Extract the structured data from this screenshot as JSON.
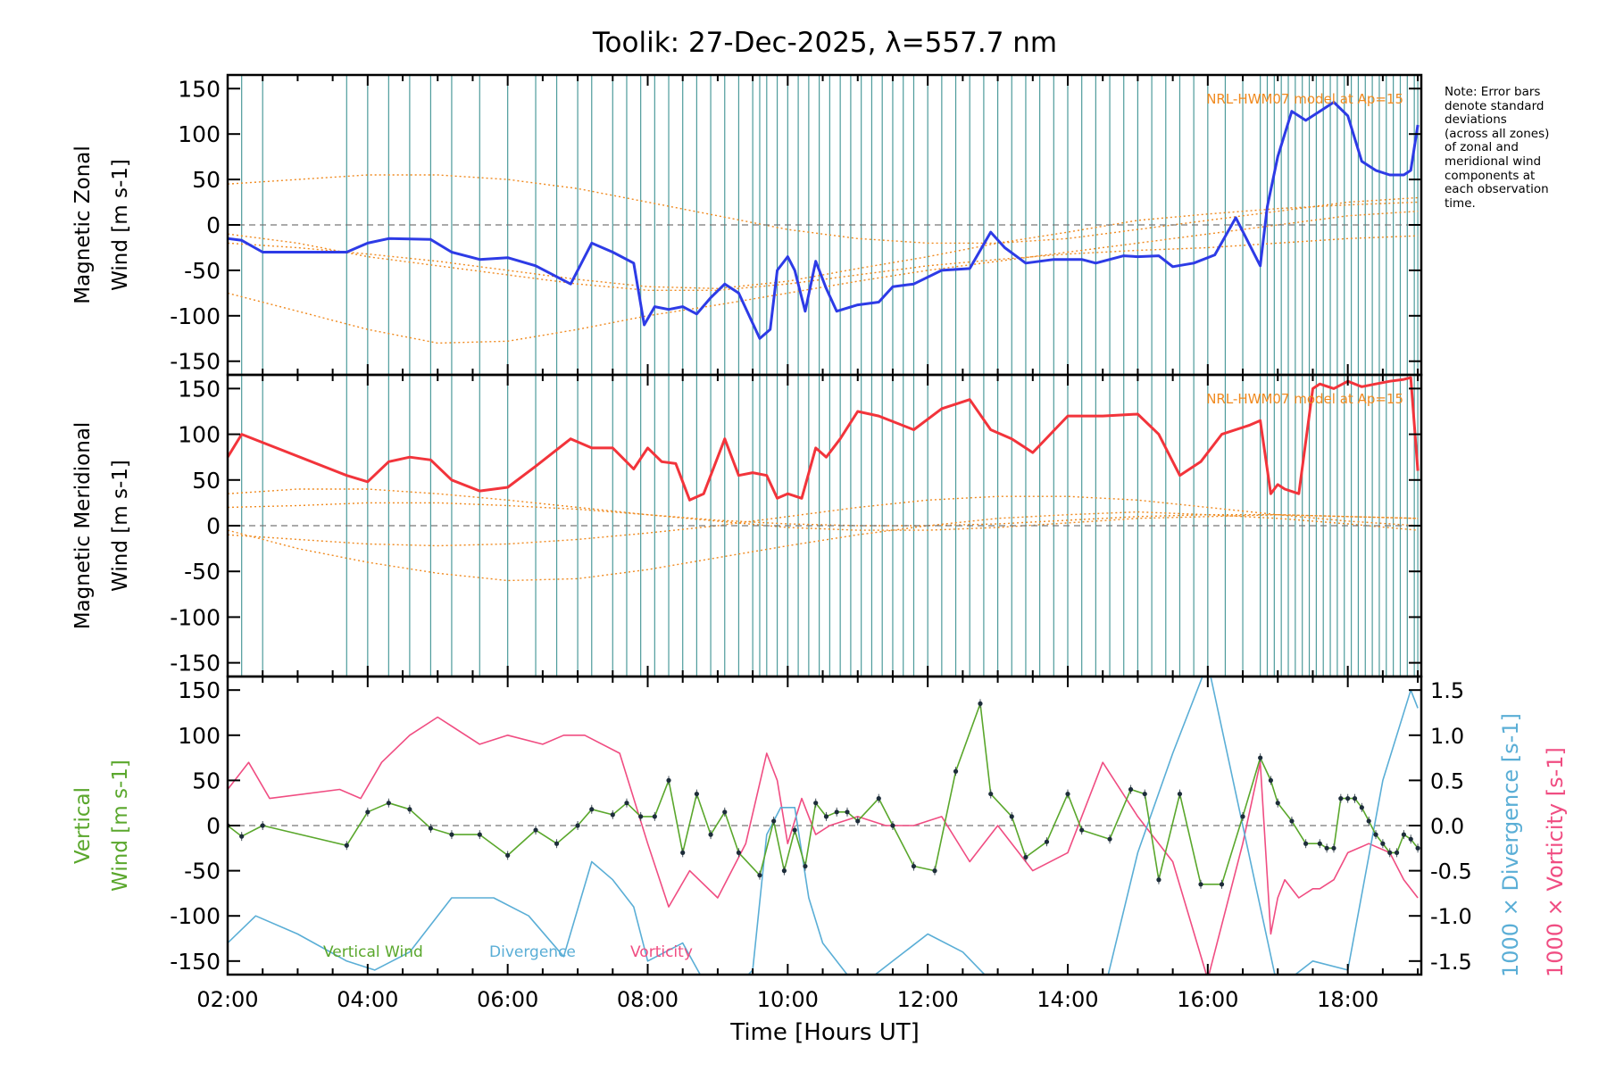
{
  "title": "Toolik: 27-Dec-2025, λ=557.7 nm",
  "note_lines": [
    "Note: Error bars",
    "denote standard",
    "deviations",
    "(across all zones)",
    "of zonal and",
    "meridional wind",
    "components at",
    "each observation",
    "time."
  ],
  "colors": {
    "zonal": "#2d3be6",
    "meridional": "#f2343b",
    "vertical": "#5aa72c",
    "divergence": "#5aaed6",
    "vorticity": "#f04d82",
    "model": "#f08a1f",
    "grid_lines": "#2f8a8a"
  },
  "chart_data": [
    {
      "type": "line",
      "panel": "zonal",
      "ylabel_line1": "Magnetic Zonal",
      "ylabel_line2": "Wind [m s-1]",
      "ylim": [
        -165,
        165
      ],
      "yticks": [
        -150,
        -100,
        -50,
        0,
        50,
        100,
        150
      ],
      "model_label": "NRL-HWM07 model at Ap=15",
      "series": [
        {
          "name": "Zonal Wind",
          "x": [
            2.0,
            2.2,
            2.5,
            3.7,
            4.0,
            4.3,
            4.9,
            5.2,
            5.6,
            6.0,
            6.4,
            6.9,
            7.2,
            7.5,
            7.8,
            7.95,
            8.1,
            8.3,
            8.5,
            8.7,
            8.9,
            9.1,
            9.3,
            9.6,
            9.75,
            9.85,
            10.0,
            10.1,
            10.25,
            10.4,
            10.55,
            10.7,
            11.0,
            11.3,
            11.5,
            11.8,
            12.2,
            12.6,
            12.9,
            13.1,
            13.4,
            13.8,
            14.2,
            14.4,
            14.8,
            15.0,
            15.3,
            15.5,
            15.8,
            16.1,
            16.4,
            16.75,
            16.85,
            17.0,
            17.2,
            17.4,
            17.6,
            17.8,
            18.0,
            18.2,
            18.4,
            18.6,
            18.8,
            18.9,
            19.0
          ],
          "y": [
            -15,
            -17,
            -30,
            -30,
            -20,
            -15,
            -16,
            -30,
            -38,
            -36,
            -45,
            -65,
            -20,
            -30,
            -42,
            -110,
            -90,
            -93,
            -90,
            -98,
            -80,
            -65,
            -75,
            -125,
            -115,
            -50,
            -35,
            -50,
            -95,
            -40,
            -70,
            -95,
            -88,
            -85,
            -68,
            -65,
            -50,
            -48,
            -8,
            -25,
            -42,
            -38,
            -38,
            -42,
            -34,
            -35,
            -34,
            -46,
            -42,
            -33,
            8,
            -45,
            20,
            75,
            125,
            115,
            125,
            135,
            120,
            70,
            60,
            55,
            55,
            60,
            110
          ]
        }
      ],
      "model_curves": [
        {
          "name": "model-1",
          "x": [
            2,
            3,
            4,
            5,
            6,
            7,
            8,
            9,
            10,
            11,
            12,
            13,
            14,
            15,
            16,
            17,
            18,
            19
          ],
          "y": [
            45,
            50,
            55,
            55,
            50,
            40,
            25,
            10,
            -5,
            -15,
            -20,
            -20,
            -15,
            -5,
            5,
            15,
            25,
            30
          ]
        },
        {
          "name": "model-2",
          "x": [
            2,
            3,
            4,
            5,
            6,
            7,
            8,
            9,
            10,
            11,
            12,
            13,
            14,
            15,
            16,
            17,
            18,
            19
          ],
          "y": [
            -10,
            -20,
            -35,
            -45,
            -55,
            -65,
            -72,
            -72,
            -65,
            -55,
            -45,
            -38,
            -32,
            -28,
            -25,
            -20,
            -15,
            -12
          ]
        },
        {
          "name": "model-3",
          "x": [
            2,
            3,
            4,
            5,
            6,
            7,
            8,
            9,
            10,
            11,
            12,
            13,
            14,
            15,
            16,
            17,
            18,
            19
          ],
          "y": [
            -75,
            -95,
            -115,
            -130,
            -128,
            -115,
            -100,
            -88,
            -75,
            -62,
            -50,
            -40,
            -30,
            -20,
            -10,
            0,
            10,
            15
          ]
        },
        {
          "name": "model-4",
          "x": [
            2,
            3,
            4,
            5,
            6,
            7,
            8,
            9,
            10,
            11,
            12,
            13,
            14,
            15,
            16,
            17,
            18,
            19
          ],
          "y": [
            -20,
            -25,
            -32,
            -40,
            -50,
            -60,
            -68,
            -70,
            -62,
            -48,
            -35,
            -20,
            -8,
            5,
            12,
            18,
            22,
            25
          ]
        }
      ]
    },
    {
      "type": "line",
      "panel": "meridional",
      "ylabel_line1": "Magnetic Meridional",
      "ylabel_line2": "Wind [m s-1]",
      "ylim": [
        -165,
        165
      ],
      "yticks": [
        -150,
        -100,
        -50,
        0,
        50,
        100,
        150
      ],
      "model_label": "NRL-HWM07 model at Ap=15",
      "series": [
        {
          "name": "Meridional Wind",
          "x": [
            2.0,
            2.2,
            3.7,
            4.0,
            4.3,
            4.6,
            4.9,
            5.2,
            5.6,
            6.0,
            6.4,
            6.9,
            7.2,
            7.5,
            7.8,
            8.0,
            8.2,
            8.4,
            8.6,
            8.8,
            9.1,
            9.3,
            9.5,
            9.7,
            9.85,
            10.0,
            10.2,
            10.4,
            10.55,
            10.75,
            11.0,
            11.3,
            11.8,
            12.2,
            12.6,
            12.9,
            13.2,
            13.5,
            14.0,
            14.5,
            15.0,
            15.3,
            15.6,
            15.9,
            16.2,
            16.6,
            16.75,
            16.9,
            17.0,
            17.1,
            17.3,
            17.5,
            17.6,
            17.8,
            18.0,
            18.2,
            18.4,
            18.6,
            18.8,
            18.9,
            19.0
          ],
          "y": [
            75,
            100,
            55,
            48,
            70,
            75,
            72,
            50,
            38,
            42,
            65,
            95,
            85,
            85,
            62,
            85,
            70,
            68,
            28,
            35,
            95,
            55,
            58,
            55,
            30,
            35,
            30,
            85,
            75,
            95,
            125,
            120,
            105,
            128,
            138,
            105,
            95,
            80,
            120,
            120,
            122,
            100,
            55,
            70,
            100,
            110,
            115,
            35,
            45,
            40,
            35,
            150,
            155,
            150,
            158,
            152,
            155,
            158,
            160,
            162,
            60
          ]
        }
      ],
      "model_curves": [
        {
          "name": "model-1",
          "x": [
            2,
            3,
            4,
            5,
            6,
            7,
            8,
            9,
            10,
            11,
            12,
            13,
            14,
            15,
            16,
            17,
            18,
            19
          ],
          "y": [
            35,
            40,
            40,
            35,
            28,
            20,
            12,
            5,
            -2,
            -5,
            -5,
            -2,
            3,
            8,
            10,
            12,
            10,
            8
          ]
        },
        {
          "name": "model-2",
          "x": [
            2,
            3,
            4,
            5,
            6,
            7,
            8,
            9,
            10,
            11,
            12,
            13,
            14,
            15,
            16,
            17,
            18,
            19
          ],
          "y": [
            -5,
            -25,
            -40,
            -52,
            -60,
            -58,
            -48,
            -35,
            -22,
            -10,
            0,
            8,
            12,
            15,
            12,
            8,
            2,
            -5
          ]
        },
        {
          "name": "model-3",
          "x": [
            2,
            3,
            4,
            5,
            6,
            7,
            8,
            9,
            10,
            11,
            12,
            13,
            14,
            15,
            16,
            17,
            18,
            19
          ],
          "y": [
            20,
            22,
            25,
            25,
            22,
            18,
            12,
            6,
            2,
            0,
            0,
            2,
            6,
            10,
            12,
            12,
            10,
            8
          ]
        },
        {
          "name": "model-4",
          "x": [
            2,
            3,
            4,
            5,
            6,
            7,
            8,
            9,
            10,
            11,
            12,
            13,
            14,
            15,
            16,
            17,
            18,
            19
          ],
          "y": [
            -10,
            -15,
            -20,
            -22,
            -20,
            -15,
            -8,
            0,
            10,
            20,
            28,
            32,
            32,
            28,
            20,
            12,
            5,
            0
          ]
        }
      ]
    },
    {
      "type": "line",
      "panel": "vertical",
      "ylabel_line1": "Vertical",
      "ylabel_line2": "Wind [m s-1]",
      "ylim": [
        -165,
        165
      ],
      "yticks": [
        -150,
        -100,
        -50,
        0,
        50,
        100,
        150
      ],
      "y2label_divergence": "1000 × Divergence [s-1]",
      "y2label_vorticity": "1000 × Vorticity [s-1]",
      "y2lim": [
        -1.65,
        1.65
      ],
      "y2ticks": [
        -1.5,
        -1.0,
        -0.5,
        0.0,
        0.5,
        1.0,
        1.5
      ],
      "y2tick_labels": [
        "-1.5",
        "-1.0",
        "-0.5",
        "0.0",
        "0.5",
        "1.0",
        "1.5"
      ],
      "legend": [
        "Vertical Wind",
        "Divergence",
        "Vorticity"
      ],
      "xlabel": "Time [Hours UT]",
      "xlim": [
        2.0,
        19.05
      ],
      "xticks": [
        2,
        4,
        6,
        8,
        10,
        12,
        14,
        16,
        18
      ],
      "xtick_labels": [
        "02:00",
        "04:00",
        "06:00",
        "08:00",
        "10:00",
        "12:00",
        "14:00",
        "16:00",
        "18:00"
      ],
      "series": [
        {
          "name": "Vertical Wind",
          "x": [
            2.0,
            2.2,
            2.5,
            3.7,
            4.0,
            4.3,
            4.6,
            4.9,
            5.2,
            5.6,
            6.0,
            6.4,
            6.7,
            7.0,
            7.2,
            7.5,
            7.7,
            7.9,
            8.1,
            8.3,
            8.5,
            8.7,
            8.9,
            9.1,
            9.3,
            9.6,
            9.8,
            9.95,
            10.1,
            10.25,
            10.4,
            10.55,
            10.7,
            10.85,
            11.0,
            11.3,
            11.5,
            11.8,
            12.1,
            12.4,
            12.75,
            12.9,
            13.2,
            13.4,
            13.7,
            14.0,
            14.2,
            14.6,
            14.9,
            15.1,
            15.3,
            15.6,
            15.9,
            16.2,
            16.5,
            16.75,
            16.9,
            17.0,
            17.2,
            17.4,
            17.6,
            17.7,
            17.8,
            17.9,
            18.0,
            18.1,
            18.2,
            18.3,
            18.4,
            18.5,
            18.6,
            18.7,
            18.8,
            18.9,
            19.0
          ],
          "y": [
            0,
            -12,
            0,
            -22,
            15,
            25,
            18,
            -3,
            -10,
            -10,
            -33,
            -5,
            -20,
            0,
            18,
            12,
            25,
            10,
            10,
            50,
            -30,
            35,
            -10,
            15,
            -30,
            -55,
            5,
            -50,
            -5,
            -45,
            25,
            10,
            15,
            15,
            5,
            30,
            0,
            -45,
            -50,
            60,
            135,
            35,
            10,
            -35,
            -18,
            35,
            -5,
            -15,
            40,
            35,
            -60,
            35,
            -65,
            -65,
            10,
            75,
            50,
            25,
            5,
            -20,
            -20,
            -25,
            -25,
            30,
            30,
            30,
            20,
            5,
            -10,
            -20,
            -30,
            -30,
            -10,
            -15,
            -25
          ]
        },
        {
          "name": "Divergence",
          "x": [
            2.0,
            2.4,
            3.0,
            3.7,
            4.1,
            4.6,
            5.2,
            5.8,
            6.3,
            6.8,
            7.2,
            7.5,
            7.8,
            8.0,
            8.5,
            9.0,
            9.5,
            9.7,
            9.9,
            10.1,
            10.3,
            10.5,
            11.0,
            11.5,
            12.0,
            12.5,
            13.0,
            13.5,
            14.0,
            14.5,
            15.0,
            15.5,
            16.0,
            16.5,
            17.0,
            17.5,
            18.0,
            18.5,
            18.9,
            19.0
          ],
          "y2": [
            -1.3,
            -1.0,
            -1.2,
            -1.5,
            -1.6,
            -1.4,
            -0.8,
            -0.8,
            -1.0,
            -1.45,
            -0.4,
            -0.6,
            -0.9,
            -1.5,
            -1.3,
            -2.0,
            -1.6,
            -0.1,
            0.2,
            0.2,
            -0.8,
            -1.3,
            -1.8,
            -1.5,
            -1.2,
            -1.4,
            -1.8,
            -2.2,
            -2.0,
            -1.9,
            -0.3,
            0.8,
            1.8,
            0.0,
            -1.8,
            -1.5,
            -1.6,
            0.5,
            1.5,
            1.3
          ]
        },
        {
          "name": "Vorticity",
          "x": [
            2.0,
            2.3,
            2.6,
            3.6,
            3.9,
            4.2,
            4.6,
            5.0,
            5.6,
            6.0,
            6.5,
            6.8,
            7.1,
            7.6,
            8.0,
            8.3,
            8.6,
            9.0,
            9.4,
            9.7,
            9.85,
            10.0,
            10.2,
            10.4,
            10.6,
            11.0,
            11.4,
            11.8,
            12.2,
            12.6,
            13.0,
            13.5,
            14.0,
            14.5,
            15.0,
            15.5,
            16.0,
            16.5,
            16.75,
            16.9,
            17.0,
            17.1,
            17.3,
            17.5,
            17.6,
            17.8,
            18.0,
            18.3,
            18.6,
            18.8,
            19.0
          ],
          "y2": [
            0.4,
            0.7,
            0.3,
            0.4,
            0.3,
            0.7,
            1.0,
            1.2,
            0.9,
            1.0,
            0.9,
            1.0,
            1.0,
            0.8,
            -0.2,
            -0.9,
            -0.5,
            -0.8,
            -0.2,
            0.8,
            0.5,
            -0.2,
            0.3,
            -0.1,
            0.0,
            0.1,
            0.0,
            0.0,
            0.1,
            -0.4,
            0.0,
            -0.5,
            -0.3,
            0.7,
            0.1,
            -0.4,
            -1.7,
            -0.2,
            0.7,
            -1.2,
            -0.8,
            -0.6,
            -0.8,
            -0.7,
            -0.7,
            -0.6,
            -0.3,
            -0.2,
            -0.3,
            -0.6,
            -0.8
          ]
        }
      ]
    }
  ],
  "observation_times": [
    2.0,
    2.2,
    2.5,
    3.7,
    4.0,
    4.3,
    4.6,
    4.9,
    5.2,
    5.6,
    6.0,
    6.4,
    6.7,
    7.0,
    7.2,
    7.5,
    7.7,
    7.9,
    8.1,
    8.3,
    8.5,
    8.7,
    8.9,
    9.1,
    9.3,
    9.5,
    9.6,
    9.7,
    9.85,
    10.0,
    10.15,
    10.3,
    10.45,
    10.6,
    10.75,
    10.9,
    11.05,
    11.2,
    11.35,
    11.5,
    11.65,
    11.8,
    12.0,
    12.2,
    12.4,
    12.6,
    12.8,
    13.0,
    13.2,
    13.4,
    13.6,
    13.8,
    14.0,
    14.2,
    14.4,
    14.6,
    14.8,
    15.0,
    15.2,
    15.4,
    15.6,
    15.8,
    16.0,
    16.25,
    16.5,
    16.75,
    16.85,
    16.95,
    17.05,
    17.15,
    17.25,
    17.35,
    17.45,
    17.55,
    17.65,
    17.75,
    17.85,
    17.95,
    18.05,
    18.15,
    18.25,
    18.35,
    18.45,
    18.55,
    18.65,
    18.75,
    18.85,
    18.95,
    19.0
  ]
}
